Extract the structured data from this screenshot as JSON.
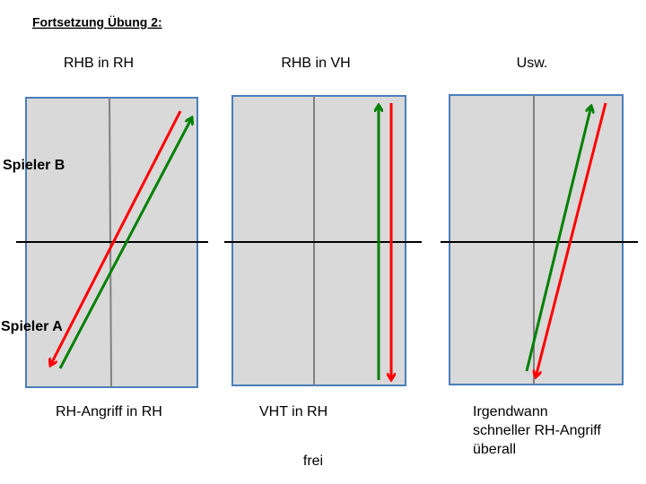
{
  "title": "Fortsetzung Übung 2:",
  "players": {
    "top": "Spieler B",
    "bottom": "Spieler A"
  },
  "panels": [
    {
      "label": "RHB in RH",
      "caption": [
        "RH-Angriff in RH"
      ]
    },
    {
      "label": "RHB in VH",
      "caption": [
        "VHT in RH"
      ]
    },
    {
      "label": "Usw.",
      "caption": [
        "Irgendwann",
        "schneller RH-Angriff",
        "überall"
      ]
    }
  ],
  "footer": "frei"
}
